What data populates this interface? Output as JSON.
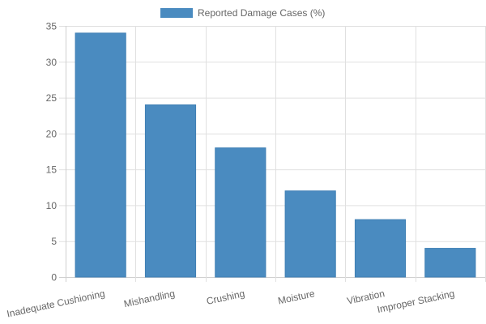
{
  "chart_data": {
    "type": "bar",
    "categories": [
      "Inadequate Cushioning",
      "Mishandling",
      "Crushing",
      "Moisture",
      "Vibration",
      "Improper Stacking"
    ],
    "series": [
      {
        "name": "Reported Damage Cases (%)",
        "values": [
          34,
          24,
          18,
          12,
          8,
          4
        ],
        "color": "#4a8bc0"
      }
    ],
    "y_ticks": [
      "0",
      "5",
      "10",
      "15",
      "20",
      "25",
      "30",
      "35"
    ],
    "ylim": [
      0,
      35
    ],
    "grid": true,
    "legend_position": "top-center"
  }
}
